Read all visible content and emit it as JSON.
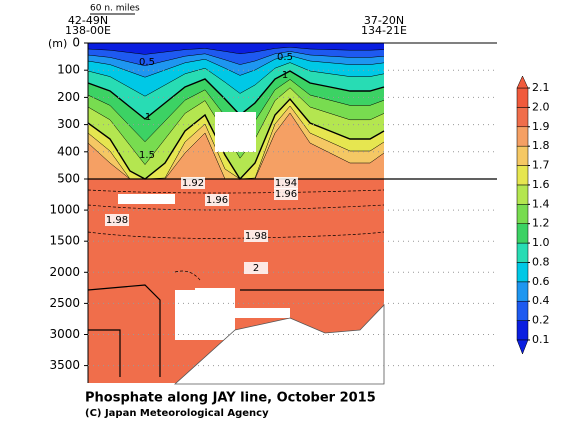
{
  "chart_data": [
    {
      "type": "contour",
      "title": "Phosphate along JAY line, October 2015",
      "credit": "(C) Japan Meteorological Agency",
      "scale_label": "60 n. miles",
      "start_position": [
        "42-49N",
        "138-00E"
      ],
      "end_position": [
        "37-20N",
        "134-21E"
      ],
      "y_unit": "(m)",
      "ylim": [
        0,
        500
      ],
      "yticks": [
        0,
        100,
        200,
        300,
        400,
        500
      ],
      "contour_labels": [
        0.5,
        0.5,
        1,
        1,
        1.5
      ],
      "colorbar": {
        "ticks": [
          0.1,
          0.2,
          0.4,
          0.6,
          0.8,
          {
            "value": 1,
            "label": "1.0"
          },
          1.2,
          1.4,
          1.6,
          1.7,
          1.8,
          1.9,
          {
            "value": 2,
            "label": "2.0"
          },
          2.1
        ],
        "colors": [
          "#0a1ee0",
          "#1e5af0",
          "#1e96f0",
          "#00c8e6",
          "#28dcb4",
          "#3cd264",
          "#78dc50",
          "#b4e650",
          "#e6e650",
          "#f5c864",
          "#f5a064",
          "#f06e4b",
          "#f05a3c"
        ]
      }
    },
    {
      "type": "contour",
      "ylim": [
        500,
        3780
      ],
      "yticks": [
        1000,
        1500,
        2000,
        2500,
        3000,
        3500
      ],
      "contour_labels": [
        1.92,
        1.94,
        1.96,
        1.96,
        1.98,
        1.98,
        2
      ]
    }
  ]
}
